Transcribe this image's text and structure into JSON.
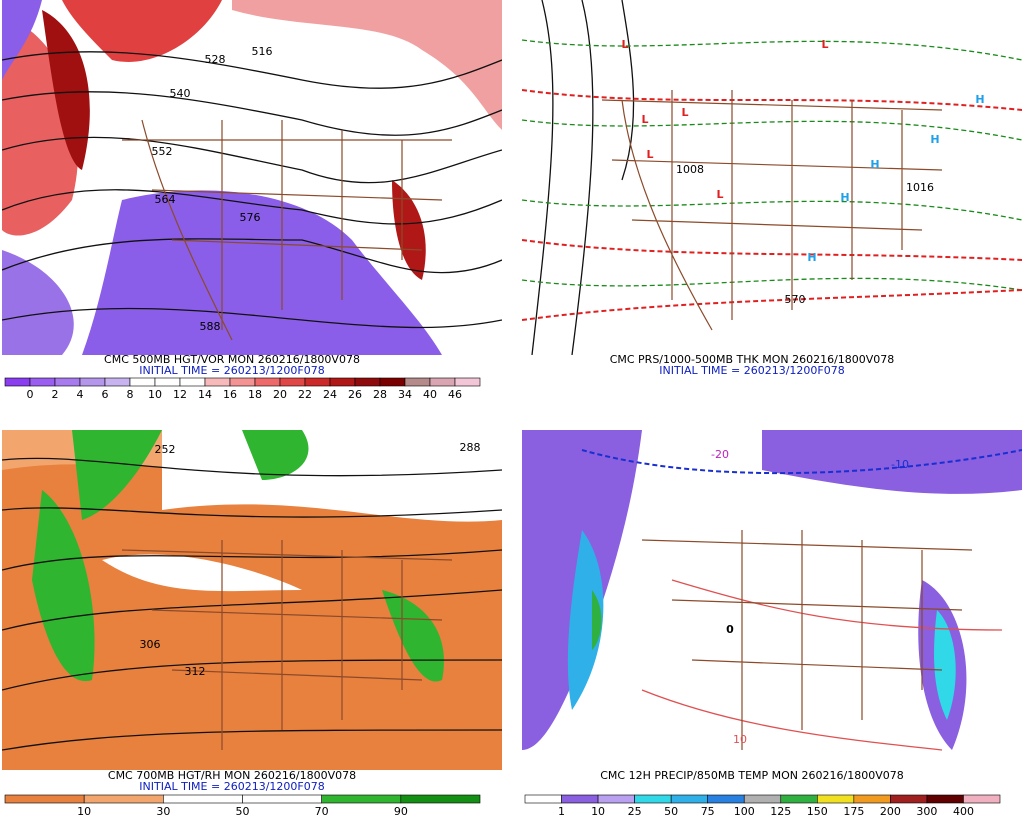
{
  "panels": [
    {
      "caption": "CMC 500MB HGT/VOR MON 260216/1800V078",
      "initial": "INITIAL TIME = 260213/1200F078",
      "labels": [
        {
          "text": "516",
          "color": "#000"
        },
        {
          "text": "528",
          "color": "#000"
        },
        {
          "text": "540",
          "color": "#000"
        },
        {
          "text": "552",
          "color": "#000"
        },
        {
          "text": "564",
          "color": "#000"
        },
        {
          "text": "576",
          "color": "#000"
        },
        {
          "text": "588",
          "color": "#000"
        }
      ],
      "colorbar": {
        "labels": [
          0,
          2,
          4,
          6,
          8,
          10,
          12,
          14,
          16,
          18,
          20,
          22,
          24,
          26,
          28,
          34,
          40,
          46
        ],
        "colors": [
          "#8a3ef0",
          "#9a5ef0",
          "#a77bee",
          "#b496ea",
          "#c7b3ef",
          "#ffffff",
          "#ffffff",
          "#ffffff",
          "#f7b9b9",
          "#f39393",
          "#ee6a6a",
          "#e04848",
          "#cc2a2a",
          "#b01818",
          "#8f0b0b",
          "#7a0000",
          "#b48a8a",
          "#d9a5b2",
          "#f2c6d6"
        ]
      }
    },
    {
      "caption": "CMC PRS/1000-500MB THK MON 260216/1800V078",
      "initial": "INITIAL TIME = 260213/1200F078",
      "labels": [
        {
          "text": "L",
          "color": "#e02020"
        },
        {
          "text": "L",
          "color": "#e02020"
        },
        {
          "text": "L",
          "color": "#e02020"
        },
        {
          "text": "L",
          "color": "#e02020"
        },
        {
          "text": "L",
          "color": "#e02020"
        },
        {
          "text": "L",
          "color": "#e02020"
        },
        {
          "text": "H",
          "color": "#20a0e8"
        },
        {
          "text": "H",
          "color": "#20a0e8"
        },
        {
          "text": "H",
          "color": "#20a0e8"
        },
        {
          "text": "H",
          "color": "#20a0e8"
        },
        {
          "text": "H",
          "color": "#20a0e8"
        },
        {
          "text": "1008",
          "color": "#000"
        },
        {
          "text": "1016",
          "color": "#000"
        },
        {
          "text": "570",
          "color": "#000"
        }
      ]
    },
    {
      "caption": "CMC 700MB HGT/RH MON 260216/1800V078",
      "initial": "INITIAL TIME = 260213/1200F078",
      "labels": [
        {
          "text": "252",
          "color": "#000"
        },
        {
          "text": "288",
          "color": "#000"
        },
        {
          "text": "306",
          "color": "#000"
        },
        {
          "text": "312",
          "color": "#000"
        }
      ],
      "colorbar": {
        "labels": [
          10,
          30,
          50,
          70,
          90
        ],
        "colors": [
          "#e8803e",
          "#f2a66e",
          "#ffffff",
          "#ffffff",
          "#2fb52f",
          "#138f13"
        ]
      }
    },
    {
      "caption": "CMC 12H PRECIP/850MB TEMP MON 260216/1800V078",
      "labels": [
        {
          "text": "-10",
          "color": "#1a2fd0"
        },
        {
          "text": "-20",
          "color": "#c020c0"
        },
        {
          "text": "0",
          "color": "#000"
        },
        {
          "text": "10",
          "color": "#e05050"
        }
      ],
      "colorbar": {
        "labels": [
          1,
          10,
          25,
          50,
          75,
          100,
          125,
          150,
          175,
          200,
          300,
          400
        ],
        "colors": [
          "#ffffff",
          "#8a5fe0",
          "#b9a0f0",
          "#30d8e8",
          "#30b0e8",
          "#2880e0",
          "#b0b0b0",
          "#30b040",
          "#f0e020",
          "#f09a20",
          "#a02020",
          "#600000",
          "#f0b0c0"
        ]
      }
    }
  ]
}
